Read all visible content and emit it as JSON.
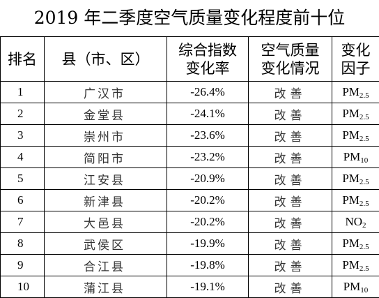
{
  "title": "2019 年二季度空气质量变化程度前十位",
  "columns": {
    "rank": "排名",
    "county": "县（市、区）",
    "rate_line1": "综合指数",
    "rate_line2": "变化率",
    "status_line1": "空气质量",
    "status_line2": "变化情况",
    "factor_line1": "变化",
    "factor_line2": "因子"
  },
  "rows": [
    {
      "rank": "1",
      "county": "广汉市",
      "rate": "-26.4%",
      "status": "改善",
      "factor_base": "PM",
      "factor_sub": "2.5"
    },
    {
      "rank": "2",
      "county": "金堂县",
      "rate": "-24.1%",
      "status": "改善",
      "factor_base": "PM",
      "factor_sub": "2.5"
    },
    {
      "rank": "3",
      "county": "崇州市",
      "rate": "-23.6%",
      "status": "改善",
      "factor_base": "PM",
      "factor_sub": "2.5"
    },
    {
      "rank": "4",
      "county": "简阳市",
      "rate": "-23.2%",
      "status": "改善",
      "factor_base": "PM",
      "factor_sub": "10"
    },
    {
      "rank": "5",
      "county": "江安县",
      "rate": "-20.9%",
      "status": "改善",
      "factor_base": "PM",
      "factor_sub": "2.5"
    },
    {
      "rank": "6",
      "county": "新津县",
      "rate": "-20.2%",
      "status": "改善",
      "factor_base": "PM",
      "factor_sub": "2.5"
    },
    {
      "rank": "7",
      "county": "大邑县",
      "rate": "-20.2%",
      "status": "改善",
      "factor_base": "NO",
      "factor_sub": "2"
    },
    {
      "rank": "8",
      "county": "武侯区",
      "rate": "-19.9%",
      "status": "改善",
      "factor_base": "PM",
      "factor_sub": "2.5"
    },
    {
      "rank": "9",
      "county": "合江县",
      "rate": "-19.8%",
      "status": "改善",
      "factor_base": "PM",
      "factor_sub": "2.5"
    },
    {
      "rank": "10",
      "county": "蒲江县",
      "rate": "-19.1%",
      "status": "改善",
      "factor_base": "PM",
      "factor_sub": "10"
    }
  ]
}
